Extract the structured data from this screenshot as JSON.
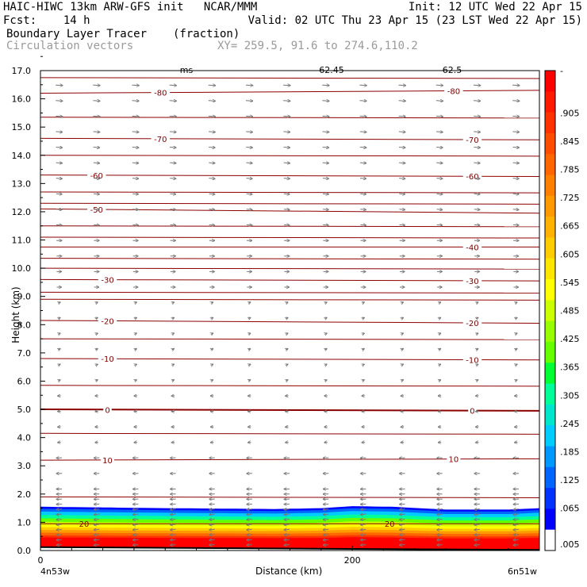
{
  "header": {
    "line1_left": "HAIC-HIWC 13km ARW-GFS init   NCAR/MMM",
    "line1_right": "Init: 12 UTC Wed 22 Apr 15",
    "line2_left": "Fcst:    14 h",
    "line2_right": "Valid: 02 UTC Thu 23 Apr 15 (23 LST Wed 22 Apr 15)",
    "field_name": "Boundary Layer Tracer",
    "field_units": "(fraction)",
    "vector_name": "Circulation vectors",
    "xy_text": "XY= 259.5, 91.6 to 274.6,110.2"
  },
  "top_clipped_labels": [
    "ms",
    "62.45",
    "62.5"
  ],
  "chart_data": {
    "type": "cross-section",
    "xlabel": "Distance (km)",
    "ylabel": "Height (km)",
    "xlim": [
      0,
      320
    ],
    "ylim": [
      0,
      17
    ],
    "x_ticks": [
      {
        "value": 0,
        "label": "0"
      },
      {
        "value": 200,
        "label": "200"
      }
    ],
    "x_end_labels": {
      "left": "4n53w",
      "right": "6n51w"
    },
    "y_ticks": [
      "0.0",
      "1.0",
      "2.0",
      "3.0",
      "4.0",
      "5.0",
      "6.0",
      "7.0",
      "8.0",
      "9.0",
      "10.0",
      "11.0",
      "12.0",
      "13.0",
      "14.0",
      "15.0",
      "16.0",
      "17.0"
    ],
    "grid": false,
    "colorbar": {
      "labels": [
        "-",
        ".905",
        ".845",
        ".785",
        ".725",
        ".665",
        ".605",
        ".545",
        ".485",
        ".425",
        ".365",
        ".305",
        ".245",
        ".185",
        ".125",
        ".065",
        ".005"
      ],
      "colors": [
        "#ff0000",
        "#ff1a00",
        "#ff3300",
        "#ff4d00",
        "#ff6600",
        "#ff8000",
        "#ff9900",
        "#ffb300",
        "#ffcc00",
        "#ffe600",
        "#ffff00",
        "#ccff00",
        "#99ff00",
        "#66ff00",
        "#00ff33",
        "#00ff99",
        "#00e6cc",
        "#00ccff",
        "#0099ff",
        "#0066ff",
        "#0033ff",
        "#0000ff",
        "#ffffff"
      ]
    },
    "tracer_top_km": [
      {
        "x": 0,
        "z": 1.55
      },
      {
        "x": 80,
        "z": 1.5
      },
      {
        "x": 150,
        "z": 1.47
      },
      {
        "x": 180,
        "z": 1.5
      },
      {
        "x": 200,
        "z": 1.57
      },
      {
        "x": 225,
        "z": 1.55
      },
      {
        "x": 260,
        "z": 1.45
      },
      {
        "x": 300,
        "z": 1.45
      },
      {
        "x": 320,
        "z": 1.5
      }
    ],
    "temperature_contours": {
      "units": "C",
      "levels": [
        {
          "value": -80,
          "z_left": 16.2,
          "z_right": 16.3,
          "labels": [
            "-80",
            "-80"
          ],
          "label_x": [
            77,
            265
          ]
        },
        {
          "value": -70,
          "z_left": 14.6,
          "z_right": 14.55,
          "labels": [
            "-70",
            "-70"
          ],
          "label_x": [
            77,
            277
          ]
        },
        {
          "value": -60,
          "z_left": 13.3,
          "z_right": 13.25,
          "labels": [
            "-60",
            "-60"
          ],
          "label_x": [
            36,
            277
          ]
        },
        {
          "value": -50,
          "z_left": 12.1,
          "z_right": 11.95,
          "labels": [
            "-50"
          ],
          "label_x": [
            36
          ]
        },
        {
          "value": -40,
          "z_left": 10.75,
          "z_right": 10.75,
          "labels": [
            "-40"
          ],
          "label_x": [
            277
          ]
        },
        {
          "value": -30,
          "z_left": 9.6,
          "z_right": 9.55,
          "labels": [
            "-30",
            "-30"
          ],
          "label_x": [
            43,
            277
          ]
        },
        {
          "value": -20,
          "z_left": 8.15,
          "z_right": 8.05,
          "labels": [
            "-20",
            "-20"
          ],
          "label_x": [
            43,
            277
          ]
        },
        {
          "value": -10,
          "z_left": 6.8,
          "z_right": 6.75,
          "labels": [
            "-10",
            "-10"
          ],
          "label_x": [
            43,
            277
          ]
        },
        {
          "value": 0,
          "z_left": 5.0,
          "z_right": 4.95,
          "labels": [
            "0",
            "0"
          ],
          "label_x": [
            43,
            277
          ]
        },
        {
          "value": 10,
          "z_left": 3.2,
          "z_right": 3.25,
          "labels": [
            "10",
            "10"
          ],
          "label_x": [
            43,
            265
          ]
        },
        {
          "value": 20,
          "z_left": 0.95,
          "z_right": 0.95,
          "labels": [
            "20",
            "20"
          ],
          "label_x": [
            28,
            224
          ]
        }
      ],
      "unlabeled_z": [
        16.75,
        15.35,
        14.0,
        12.7,
        12.3,
        11.5,
        11.1,
        10.35,
        10.0,
        9.15,
        8.9,
        7.5,
        5.85,
        4.15,
        1.9
      ]
    },
    "vector_columns_x": [
      12,
      36,
      61,
      85,
      110,
      134,
      158,
      183,
      207,
      232,
      256,
      280,
      305
    ]
  }
}
